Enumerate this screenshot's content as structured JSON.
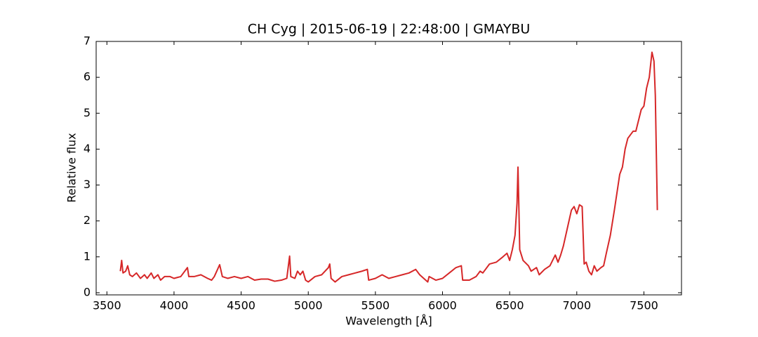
{
  "chart_data": {
    "type": "line",
    "title": "CH Cyg | 2015-06-19 | 22:48:00 | GMAYBU",
    "x_label": "Wavelength [Å]",
    "y_label": "Relative flux",
    "xlim": [
      3420,
      7780
    ],
    "ylim": [
      -0.06,
      7
    ],
    "xticks": [
      3500,
      4000,
      4500,
      5000,
      5500,
      6000,
      6500,
      7000,
      7500
    ],
    "yticks": [
      0,
      1,
      2,
      3,
      4,
      5,
      6,
      7
    ],
    "series": [
      {
        "color": "#d62728",
        "x": [
          3600,
          3610,
          3620,
          3640,
          3655,
          3670,
          3690,
          3720,
          3750,
          3780,
          3800,
          3830,
          3850,
          3880,
          3900,
          3930,
          3970,
          4000,
          4050,
          4100,
          4110,
          4150,
          4200,
          4250,
          4280,
          4300,
          4340,
          4360,
          4400,
          4450,
          4500,
          4550,
          4600,
          4650,
          4700,
          4750,
          4800,
          4840,
          4861,
          4870,
          4900,
          4920,
          4940,
          4960,
          4980,
          5000,
          5050,
          5100,
          5150,
          5160,
          5170,
          5200,
          5250,
          5300,
          5350,
          5400,
          5440,
          5450,
          5500,
          5550,
          5600,
          5650,
          5700,
          5750,
          5800,
          5830,
          5860,
          5890,
          5900,
          5950,
          6000,
          6050,
          6100,
          6140,
          6150,
          6200,
          6250,
          6280,
          6300,
          6350,
          6400,
          6450,
          6480,
          6500,
          6520,
          6540,
          6555,
          6562,
          6568,
          6575,
          6600,
          6640,
          6660,
          6700,
          6720,
          6760,
          6800,
          6840,
          6860,
          6880,
          6900,
          6930,
          6960,
          6980,
          7000,
          7020,
          7040,
          7055,
          7070,
          7090,
          7110,
          7130,
          7150,
          7180,
          7200,
          7220,
          7250,
          7280,
          7300,
          7320,
          7340,
          7360,
          7380,
          7400,
          7420,
          7440,
          7460,
          7480,
          7500,
          7520,
          7540,
          7560,
          7575,
          7585,
          7600
        ],
        "values": [
          0.6,
          0.9,
          0.55,
          0.6,
          0.75,
          0.5,
          0.45,
          0.55,
          0.4,
          0.5,
          0.4,
          0.55,
          0.4,
          0.5,
          0.35,
          0.45,
          0.45,
          0.4,
          0.45,
          0.7,
          0.45,
          0.45,
          0.5,
          0.4,
          0.35,
          0.45,
          0.78,
          0.45,
          0.4,
          0.45,
          0.4,
          0.45,
          0.35,
          0.38,
          0.38,
          0.32,
          0.35,
          0.4,
          1.02,
          0.45,
          0.4,
          0.6,
          0.5,
          0.6,
          0.35,
          0.3,
          0.45,
          0.5,
          0.7,
          0.8,
          0.4,
          0.3,
          0.45,
          0.5,
          0.55,
          0.6,
          0.65,
          0.35,
          0.4,
          0.5,
          0.4,
          0.45,
          0.5,
          0.55,
          0.65,
          0.5,
          0.4,
          0.3,
          0.45,
          0.35,
          0.4,
          0.55,
          0.7,
          0.75,
          0.35,
          0.35,
          0.45,
          0.6,
          0.55,
          0.8,
          0.85,
          1.0,
          1.1,
          0.9,
          1.2,
          1.6,
          2.5,
          3.5,
          2.5,
          1.2,
          0.9,
          0.75,
          0.6,
          0.7,
          0.5,
          0.65,
          0.75,
          1.05,
          0.85,
          1.05,
          1.3,
          1.8,
          2.3,
          2.4,
          2.2,
          2.45,
          2.4,
          0.8,
          0.85,
          0.6,
          0.5,
          0.75,
          0.6,
          0.7,
          0.75,
          1.1,
          1.6,
          2.3,
          2.8,
          3.3,
          3.5,
          4.0,
          4.3,
          4.4,
          4.5,
          4.5,
          4.8,
          5.1,
          5.2,
          5.7,
          6.0,
          6.7,
          6.45,
          5.5,
          2.3
        ]
      }
    ]
  }
}
